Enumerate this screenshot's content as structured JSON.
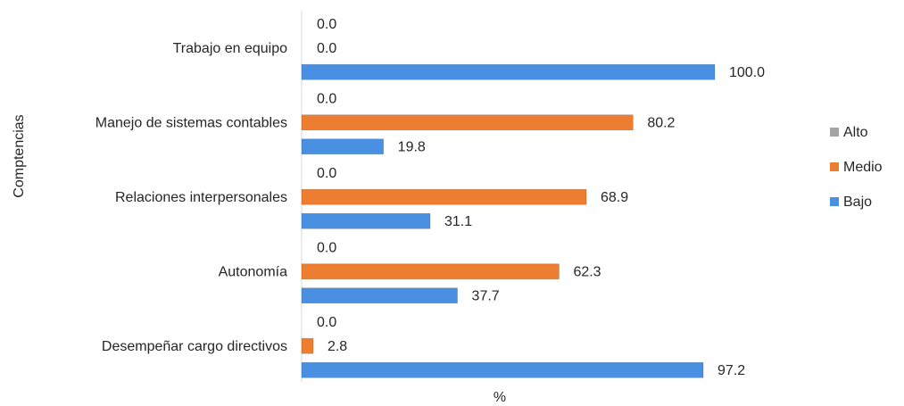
{
  "chart_data": {
    "type": "bar",
    "orientation": "horizontal",
    "categories": [
      "Trabajo en equipo",
      "Manejo de sistemas contables",
      "Relaciones interpersonales",
      "Autonomía",
      "Desempeñar cargo directivos"
    ],
    "series": [
      {
        "name": "Alto",
        "color": "#a5a5a5",
        "values": [
          0.0,
          0.0,
          0.0,
          0.0,
          0.0
        ]
      },
      {
        "name": "Medio",
        "color": "#ed7d31",
        "values": [
          0.0,
          80.2,
          68.9,
          62.3,
          2.8
        ]
      },
      {
        "name": "Bajo",
        "color": "#4a90e2",
        "values": [
          100.0,
          19.8,
          31.1,
          37.7,
          97.2
        ]
      }
    ],
    "xlabel": "%",
    "ylabel": "Comptencias",
    "xlim": [
      0,
      100
    ],
    "grid": false,
    "legend_position": "right",
    "data_labels": true
  }
}
